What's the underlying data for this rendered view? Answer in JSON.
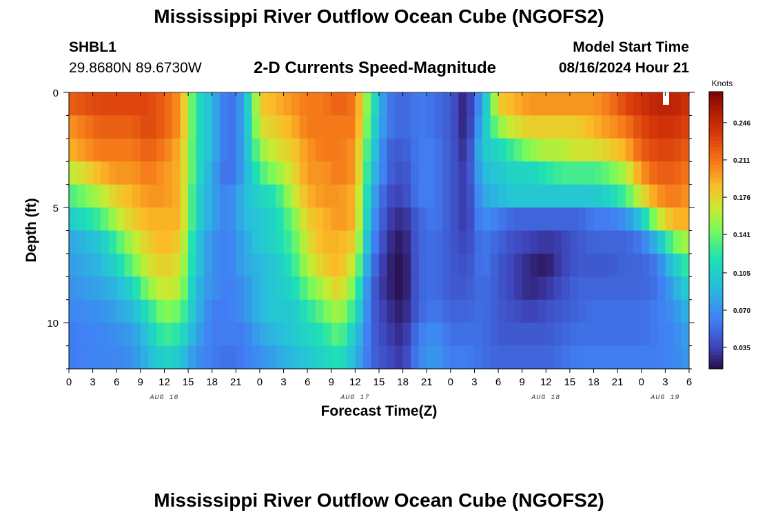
{
  "chart_data": {
    "type": "heatmap",
    "title": "Mississippi River Outflow Ocean Cube (NGOFS2)",
    "subtitle": "2-D Currents Speed-Magnitude",
    "station": "SHBL1",
    "location": "29.8680N  89.6730W",
    "model_start_label": "Model Start Time",
    "model_start_value": "08/16/2024 Hour 21",
    "xlabel": "Forecast Time(Z)",
    "ylabel": "Depth (ft)",
    "x_range_hours": [
      0,
      78
    ],
    "ylim": [
      0,
      12
    ],
    "x_tick_labels": [
      "0",
      "3",
      "6",
      "9",
      "12",
      "15",
      "18",
      "21",
      "0",
      "3",
      "6",
      "9",
      "12",
      "15",
      "18",
      "21",
      "0",
      "3",
      "6",
      "9",
      "12",
      "15",
      "18",
      "21",
      "0",
      "3",
      "6"
    ],
    "y_tick_labels": [
      "0",
      "5",
      "10"
    ],
    "y_tick_values": [
      0,
      5,
      10
    ],
    "dates": [
      {
        "label": "AUG 16",
        "hour": 12
      },
      {
        "label": "AUG 17",
        "hour": 36
      },
      {
        "label": "AUG 18",
        "hour": 60
      },
      {
        "label": "AUG 19",
        "hour": 75
      }
    ],
    "colorbar": {
      "unit": "Knots",
      "min": 0.015,
      "max": 0.275,
      "tick_labels": [
        "0.246",
        "0.211",
        "0.176",
        "0.141",
        "0.105",
        "0.070",
        "0.035"
      ],
      "tick_values": [
        0.246,
        0.211,
        0.176,
        0.141,
        0.105,
        0.07,
        0.035
      ]
    },
    "depths_ft": [
      0.5,
      1.5,
      2.5,
      3.5,
      4.5,
      5.5,
      6.5,
      7.5,
      8.5,
      9.5,
      10.5,
      11.5
    ],
    "profile_hours": [
      0,
      4,
      6,
      8,
      10,
      12,
      14,
      16,
      18,
      20,
      22,
      24,
      26,
      28,
      30,
      32,
      34,
      36,
      38,
      40,
      42,
      44,
      46,
      48,
      50,
      52,
      54,
      56,
      58,
      60,
      62,
      64,
      66,
      68,
      70,
      72,
      74,
      76,
      78
    ],
    "speed_profiles_knots": [
      [
        0.22,
        0.2,
        0.19,
        0.16,
        0.13,
        0.1,
        0.08,
        0.075,
        0.07,
        0.065,
        0.06,
        0.06
      ],
      [
        0.23,
        0.22,
        0.21,
        0.19,
        0.16,
        0.13,
        0.1,
        0.09,
        0.08,
        0.07,
        0.065,
        0.065
      ],
      [
        0.23,
        0.22,
        0.21,
        0.2,
        0.18,
        0.16,
        0.13,
        0.11,
        0.09,
        0.08,
        0.07,
        0.065
      ],
      [
        0.23,
        0.22,
        0.21,
        0.2,
        0.19,
        0.18,
        0.16,
        0.14,
        0.11,
        0.09,
        0.075,
        0.07
      ],
      [
        0.23,
        0.23,
        0.22,
        0.21,
        0.2,
        0.19,
        0.18,
        0.17,
        0.15,
        0.12,
        0.1,
        0.09
      ],
      [
        0.22,
        0.22,
        0.21,
        0.2,
        0.2,
        0.19,
        0.19,
        0.18,
        0.17,
        0.15,
        0.13,
        0.11
      ],
      [
        0.2,
        0.2,
        0.19,
        0.19,
        0.19,
        0.19,
        0.18,
        0.17,
        0.16,
        0.14,
        0.12,
        0.1
      ],
      [
        0.12,
        0.12,
        0.12,
        0.12,
        0.11,
        0.11,
        0.1,
        0.1,
        0.09,
        0.09,
        0.08,
        0.07
      ],
      [
        0.09,
        0.09,
        0.09,
        0.08,
        0.08,
        0.08,
        0.07,
        0.07,
        0.07,
        0.06,
        0.06,
        0.06
      ],
      [
        0.05,
        0.05,
        0.05,
        0.05,
        0.06,
        0.06,
        0.06,
        0.06,
        0.06,
        0.06,
        0.06,
        0.055
      ],
      [
        0.08,
        0.08,
        0.08,
        0.08,
        0.09,
        0.09,
        0.08,
        0.08,
        0.07,
        0.07,
        0.06,
        0.06
      ],
      [
        0.18,
        0.17,
        0.15,
        0.13,
        0.11,
        0.1,
        0.1,
        0.09,
        0.09,
        0.09,
        0.08,
        0.07
      ],
      [
        0.19,
        0.18,
        0.17,
        0.15,
        0.12,
        0.11,
        0.11,
        0.1,
        0.1,
        0.1,
        0.09,
        0.08
      ],
      [
        0.2,
        0.19,
        0.18,
        0.17,
        0.16,
        0.14,
        0.13,
        0.12,
        0.11,
        0.1,
        0.1,
        0.09
      ],
      [
        0.21,
        0.21,
        0.2,
        0.2,
        0.19,
        0.18,
        0.17,
        0.16,
        0.14,
        0.12,
        0.11,
        0.1
      ],
      [
        0.21,
        0.21,
        0.21,
        0.2,
        0.2,
        0.19,
        0.19,
        0.18,
        0.16,
        0.14,
        0.12,
        0.11
      ],
      [
        0.22,
        0.21,
        0.21,
        0.21,
        0.2,
        0.2,
        0.19,
        0.19,
        0.18,
        0.16,
        0.14,
        0.12
      ],
      [
        0.21,
        0.21,
        0.2,
        0.2,
        0.19,
        0.19,
        0.18,
        0.16,
        0.14,
        0.12,
        0.1,
        0.09
      ],
      [
        0.13,
        0.12,
        0.11,
        0.1,
        0.09,
        0.08,
        0.07,
        0.06,
        0.05,
        0.05,
        0.05,
        0.05
      ],
      [
        0.06,
        0.06,
        0.05,
        0.05,
        0.04,
        0.035,
        0.03,
        0.025,
        0.025,
        0.03,
        0.035,
        0.04
      ],
      [
        0.05,
        0.05,
        0.045,
        0.04,
        0.035,
        0.025,
        0.018,
        0.015,
        0.015,
        0.02,
        0.025,
        0.03
      ],
      [
        0.06,
        0.06,
        0.06,
        0.06,
        0.06,
        0.05,
        0.05,
        0.05,
        0.05,
        0.05,
        0.06,
        0.065
      ],
      [
        0.055,
        0.055,
        0.06,
        0.06,
        0.06,
        0.06,
        0.055,
        0.055,
        0.055,
        0.06,
        0.07,
        0.075
      ],
      [
        0.045,
        0.045,
        0.045,
        0.045,
        0.045,
        0.045,
        0.045,
        0.045,
        0.045,
        0.05,
        0.055,
        0.06
      ],
      [
        0.02,
        0.02,
        0.025,
        0.03,
        0.03,
        0.03,
        0.035,
        0.04,
        0.045,
        0.05,
        0.055,
        0.06
      ],
      [
        0.08,
        0.09,
        0.1,
        0.09,
        0.08,
        0.07,
        0.06,
        0.06,
        0.055,
        0.055,
        0.055,
        0.055
      ],
      [
        0.18,
        0.15,
        0.11,
        0.1,
        0.09,
        0.06,
        0.05,
        0.045,
        0.045,
        0.045,
        0.045,
        0.05
      ],
      [
        0.19,
        0.17,
        0.13,
        0.11,
        0.1,
        0.05,
        0.04,
        0.035,
        0.035,
        0.04,
        0.045,
        0.05
      ],
      [
        0.2,
        0.18,
        0.15,
        0.11,
        0.1,
        0.05,
        0.035,
        0.025,
        0.025,
        0.035,
        0.045,
        0.05
      ],
      [
        0.2,
        0.18,
        0.16,
        0.12,
        0.1,
        0.05,
        0.03,
        0.02,
        0.03,
        0.04,
        0.045,
        0.05
      ],
      [
        0.2,
        0.18,
        0.16,
        0.13,
        0.1,
        0.05,
        0.035,
        0.035,
        0.04,
        0.045,
        0.05,
        0.055
      ],
      [
        0.2,
        0.18,
        0.17,
        0.13,
        0.1,
        0.05,
        0.045,
        0.045,
        0.05,
        0.05,
        0.055,
        0.06
      ],
      [
        0.2,
        0.19,
        0.17,
        0.13,
        0.1,
        0.06,
        0.05,
        0.045,
        0.05,
        0.055,
        0.055,
        0.06
      ],
      [
        0.21,
        0.2,
        0.18,
        0.14,
        0.11,
        0.06,
        0.05,
        0.045,
        0.05,
        0.055,
        0.055,
        0.06
      ],
      [
        0.23,
        0.21,
        0.19,
        0.16,
        0.13,
        0.07,
        0.05,
        0.05,
        0.05,
        0.055,
        0.055,
        0.06
      ],
      [
        0.24,
        0.23,
        0.22,
        0.2,
        0.17,
        0.1,
        0.06,
        0.05,
        0.05,
        0.055,
        0.055,
        0.06
      ],
      [
        0.25,
        0.24,
        0.23,
        0.22,
        0.2,
        0.16,
        0.09,
        0.06,
        0.055,
        0.06,
        0.06,
        0.06
      ],
      [
        0.25,
        0.24,
        0.23,
        0.22,
        0.21,
        0.19,
        0.14,
        0.1,
        0.08,
        0.07,
        0.065,
        0.065
      ],
      [
        0.24,
        0.23,
        0.22,
        0.21,
        0.2,
        0.19,
        0.16,
        0.13,
        0.11,
        0.09,
        0.08,
        0.075
      ]
    ]
  }
}
